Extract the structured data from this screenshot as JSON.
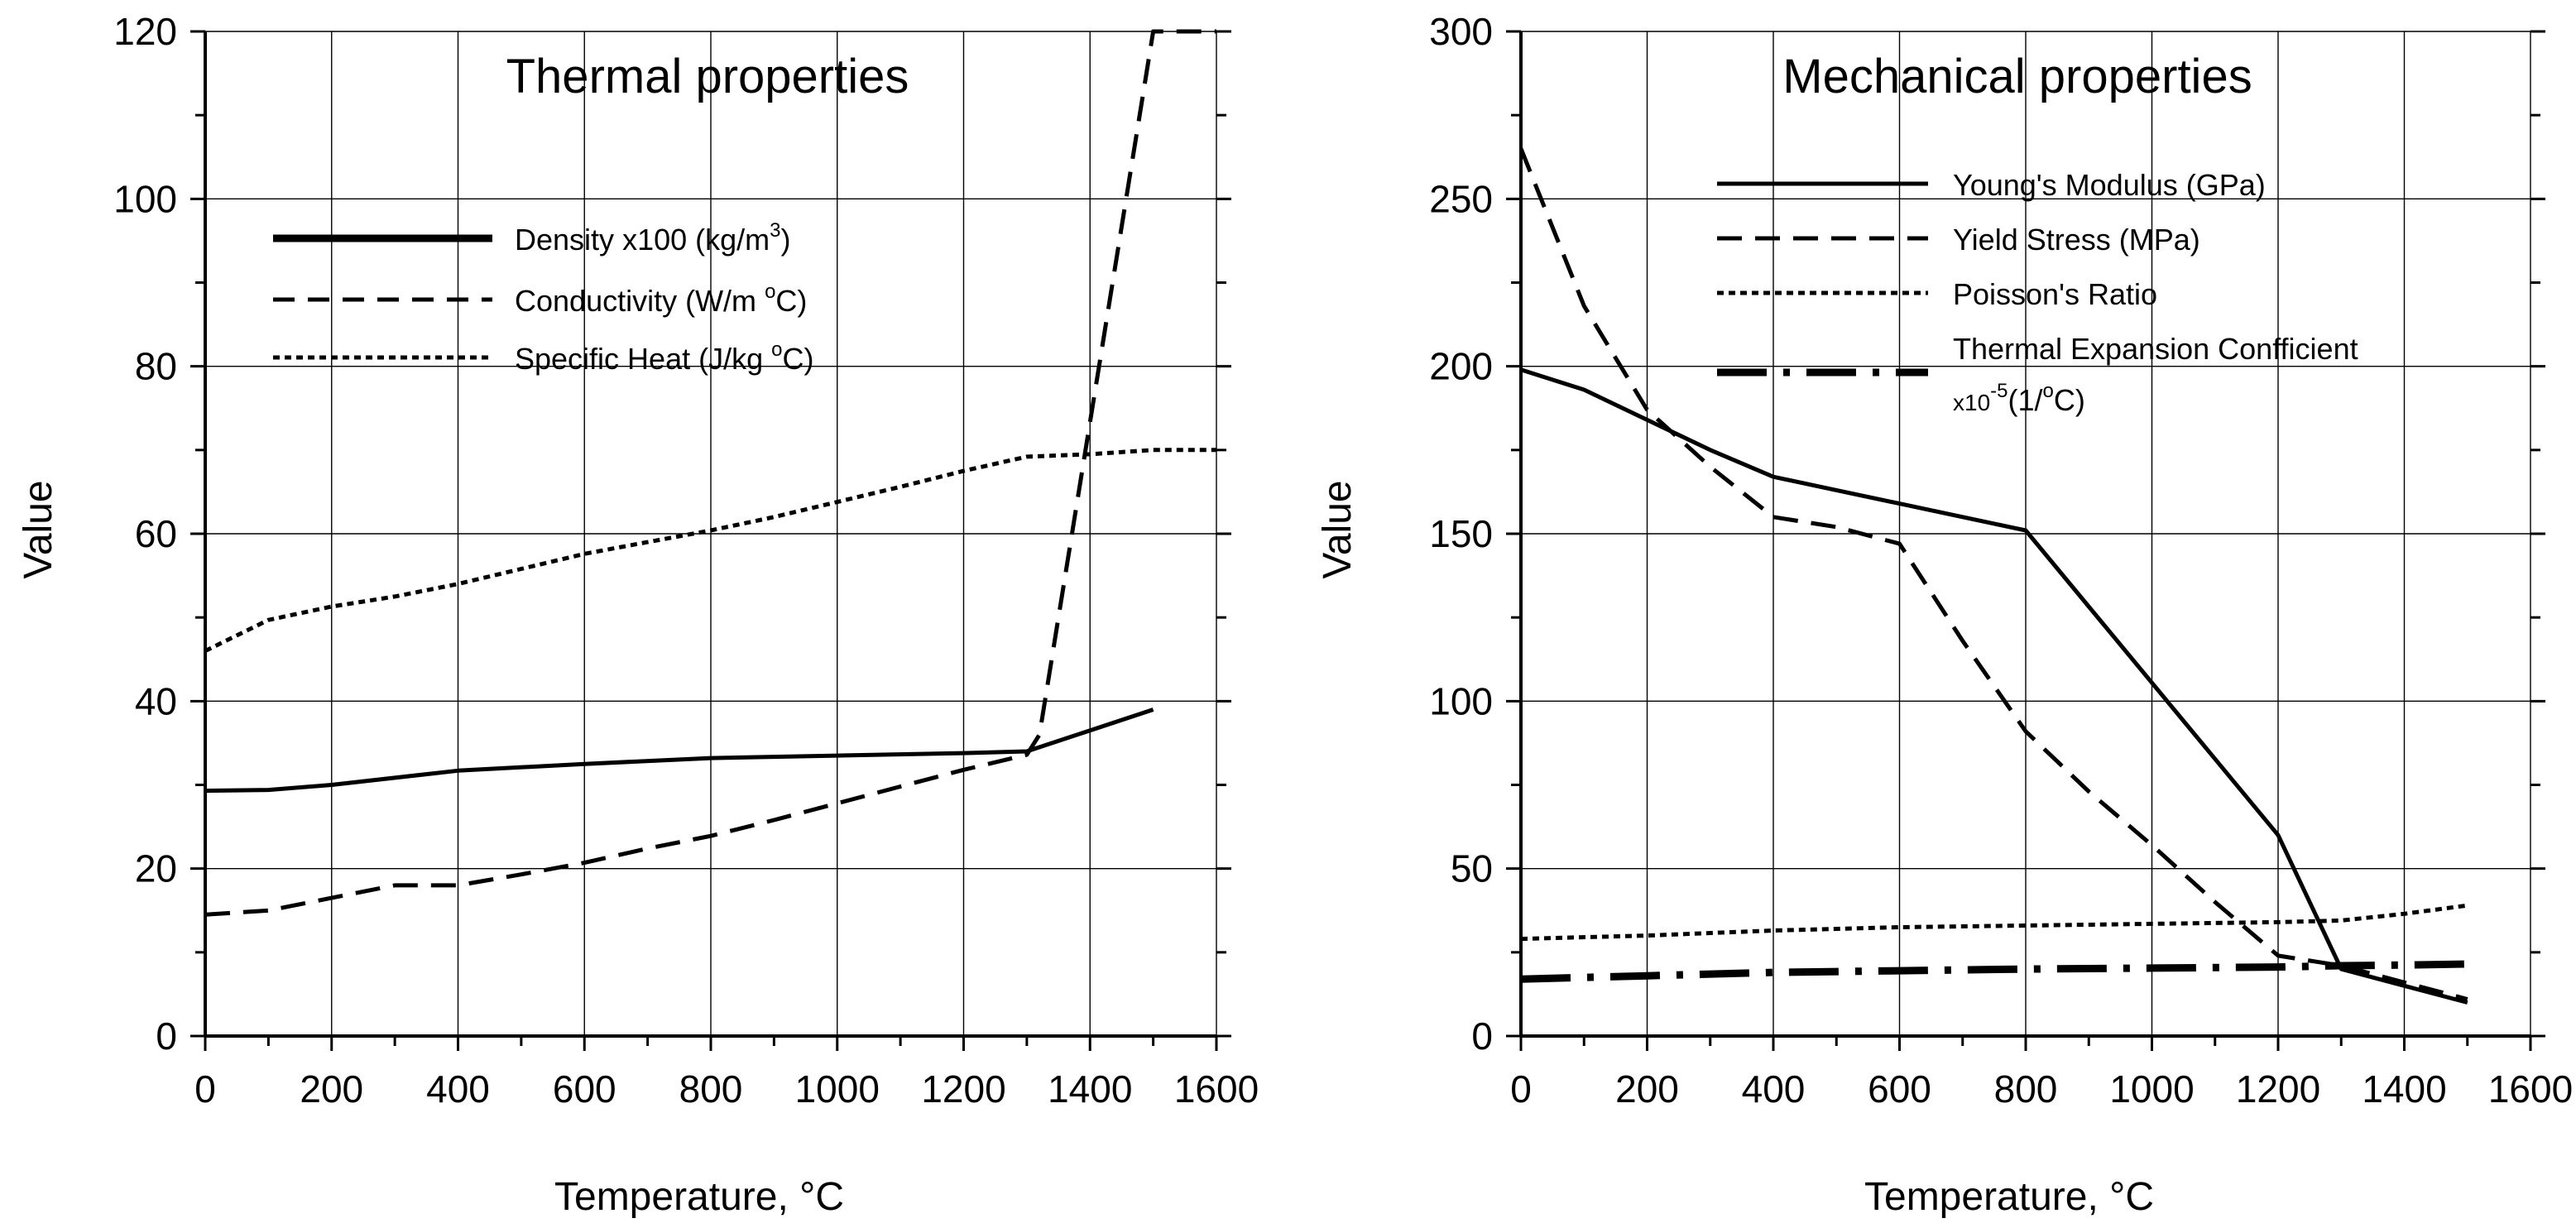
{
  "chart_data": [
    {
      "type": "line",
      "title": "Thermal properties",
      "xlabel": "Temperature, °C",
      "ylabel": "Value",
      "xlim": [
        0,
        1600
      ],
      "ylim": [
        0,
        120
      ],
      "xticks": [
        0,
        200,
        400,
        600,
        800,
        1000,
        1200,
        1400,
        1600
      ],
      "yticks": [
        0,
        20,
        40,
        60,
        80,
        100,
        120
      ],
      "grid": true,
      "legend_position": "top-left",
      "series": [
        {
          "name": "Density",
          "label_main": "Density",
          "label_scale": "x100",
          "label_unit": "(kg/m",
          "label_sup": "3",
          "label_end": ")",
          "style": "solid",
          "x": [
            0,
            100,
            200,
            400,
            600,
            800,
            1000,
            1200,
            1300,
            1400,
            1500
          ],
          "y": [
            29.3,
            29.4,
            30,
            31.7,
            32.5,
            33.2,
            33.5,
            33.8,
            34,
            36.5,
            39
          ]
        },
        {
          "name": "Conductivity",
          "label_main": "Conductivity (W/m",
          "label_sup": "o",
          "label_end": "C)",
          "style": "dashed",
          "x": [
            0,
            100,
            200,
            300,
            400,
            500,
            600,
            700,
            800,
            900,
            1000,
            1100,
            1200,
            1300,
            1320,
            1500,
            1550,
            1600
          ],
          "y": [
            14.5,
            15,
            16.5,
            18,
            18,
            19.3,
            20.7,
            22.4,
            23.9,
            25.8,
            27.8,
            29.8,
            31.8,
            33.6,
            36,
            120,
            120,
            120
          ]
        },
        {
          "name": "Specific Heat",
          "label_main": "Specific Heat (J/kg",
          "label_sup": "o",
          "label_end": "C)",
          "style": "dotted",
          "x": [
            0,
            100,
            200,
            300,
            400,
            500,
            600,
            700,
            800,
            900,
            1000,
            1100,
            1200,
            1300,
            1400,
            1500,
            1600
          ],
          "y": [
            46,
            49.7,
            51.3,
            52.5,
            54,
            55.8,
            57.6,
            59,
            60.4,
            62,
            63.8,
            65.6,
            67.5,
            69.2,
            69.5,
            70,
            70
          ]
        }
      ]
    },
    {
      "type": "line",
      "title": "Mechanical properties",
      "xlabel": "Temperature, °C",
      "ylabel": "Value",
      "xlim": [
        0,
        1600
      ],
      "ylim": [
        0,
        300
      ],
      "xticks": [
        0,
        200,
        400,
        600,
        800,
        1000,
        1200,
        1400,
        1600
      ],
      "yticks": [
        0,
        50,
        100,
        150,
        200,
        250,
        300
      ],
      "grid": true,
      "legend_position": "top-right",
      "series": [
        {
          "name": "Young's Modulus (GPa)",
          "label_main": "Young's Modulus (GPa)",
          "style": "solid",
          "x": [
            0,
            100,
            200,
            300,
            400,
            500,
            600,
            700,
            800,
            1200,
            1300,
            1400,
            1500
          ],
          "y": [
            199,
            193,
            184,
            175,
            167,
            163,
            159,
            155,
            151,
            60,
            20,
            15,
            10
          ]
        },
        {
          "name": "Yield Stress (MPa)",
          "label_main": "Yield Stress (MPa)",
          "style": "dashed",
          "x": [
            0,
            100,
            200,
            300,
            400,
            500,
            600,
            700,
            800,
            900,
            1000,
            1100,
            1200,
            1300,
            1400,
            1500
          ],
          "y": [
            265,
            218,
            187,
            170,
            155,
            152,
            147,
            118,
            91,
            73,
            57,
            40,
            24,
            21,
            16,
            11
          ]
        },
        {
          "name": "Poisson's Ratio",
          "label_main": "Poisson's Ratio",
          "style": "dotted",
          "x": [
            0,
            200,
            400,
            600,
            800,
            1000,
            1200,
            1300,
            1400,
            1500
          ],
          "y": [
            29,
            30,
            31.5,
            32.5,
            33,
            33.5,
            34,
            34.5,
            36.5,
            39
          ]
        },
        {
          "name": "Thermal Expansion Confficient",
          "label_main": "Thermal Expansion Confficient",
          "label_line2_scale": "x10",
          "label_line2_sup": "-5",
          "label_line2_pre": "(1/",
          "label_line2_sup2": "o",
          "label_line2_end": "C)",
          "style": "dashdot",
          "x": [
            0,
            100,
            200,
            400,
            600,
            800,
            1000,
            1200,
            1300,
            1400,
            1500
          ],
          "y": [
            17,
            17.5,
            18,
            19,
            19.5,
            20,
            20.3,
            20.6,
            21,
            21.2,
            21.5
          ]
        }
      ]
    }
  ]
}
